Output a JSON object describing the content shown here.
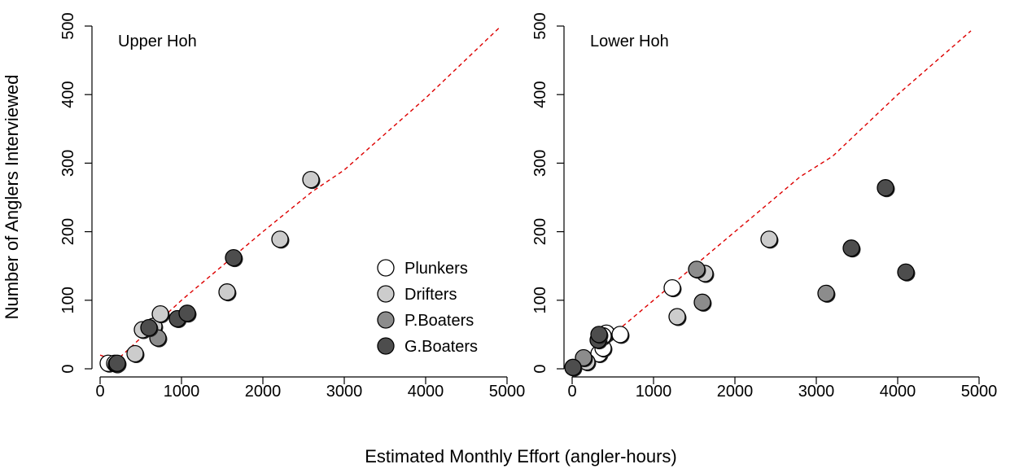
{
  "figure": {
    "shared_xlabel": "Estimated Monthly Effort (angler-hours)",
    "shared_ylabel": "Number of Anglers Interviewed"
  },
  "legend": {
    "placement": "bottom-right of first panel",
    "entries": [
      {
        "name": "Plunkers",
        "color": "#ffffff"
      },
      {
        "name": "Drifters",
        "color": "#cccccc"
      },
      {
        "name": "P.Boaters",
        "color": "#8c8c8c"
      },
      {
        "name": "G.Boaters",
        "color": "#4d4d4d"
      }
    ]
  },
  "chart_data": [
    {
      "type": "scatter",
      "panel_label": "Upper Hoh",
      "xlim": [
        0,
        5000
      ],
      "ylim": [
        0,
        500
      ],
      "xticks": [
        0,
        1000,
        2000,
        3000,
        4000,
        5000
      ],
      "yticks": [
        0,
        100,
        200,
        300,
        400,
        500
      ],
      "grid": false,
      "reference_line": {
        "style": "dashed",
        "color": "#dd0000",
        "points": [
          [
            0,
            20
          ],
          [
            200,
            12
          ],
          [
            500,
            45
          ],
          [
            1000,
            100
          ],
          [
            1500,
            150
          ],
          [
            2000,
            200
          ],
          [
            2600,
            258
          ],
          [
            3000,
            290
          ],
          [
            4000,
            395
          ],
          [
            4900,
            497
          ]
        ]
      },
      "series": [
        {
          "name": "Plunkers",
          "points": [
            [
              100,
              8
            ],
            [
              180,
              8
            ]
          ]
        },
        {
          "name": "Drifters",
          "points": [
            [
              430,
              22
            ],
            [
              520,
              57
            ],
            [
              660,
              62
            ],
            [
              740,
              80
            ],
            [
              1560,
              112
            ],
            [
              2210,
              189
            ],
            [
              2590,
              276
            ]
          ]
        },
        {
          "name": "P.Boaters",
          "points": [
            [
              200,
              7
            ],
            [
              710,
              45
            ]
          ]
        },
        {
          "name": "G.Boaters",
          "points": [
            [
              210,
              8
            ],
            [
              600,
              60
            ],
            [
              950,
              73
            ],
            [
              1070,
              81
            ],
            [
              1640,
              162
            ]
          ]
        }
      ]
    },
    {
      "type": "scatter",
      "panel_label": "Lower Hoh",
      "xlim": [
        0,
        5000
      ],
      "ylim": [
        0,
        500
      ],
      "xticks": [
        0,
        1000,
        2000,
        3000,
        4000,
        5000
      ],
      "yticks": [
        0,
        100,
        200,
        300,
        400,
        500
      ],
      "grid": false,
      "reference_line": {
        "style": "dashed",
        "color": "#dd0000",
        "points": [
          [
            0,
            0
          ],
          [
            1000,
            100
          ],
          [
            2000,
            200
          ],
          [
            2800,
            280
          ],
          [
            3200,
            310
          ],
          [
            4000,
            400
          ],
          [
            4900,
            493
          ]
        ]
      },
      "series": [
        {
          "name": "Plunkers",
          "points": [
            [
              330,
              22
            ],
            [
              380,
              30
            ],
            [
              420,
              52
            ],
            [
              380,
              48
            ],
            [
              590,
              50
            ],
            [
              1230,
              118
            ]
          ]
        },
        {
          "name": "Drifters",
          "points": [
            [
              180,
              10
            ],
            [
              1290,
              76
            ],
            [
              1630,
              139
            ],
            [
              2420,
              189
            ]
          ]
        },
        {
          "name": "P.Boaters",
          "points": [
            [
              140,
              16
            ],
            [
              1600,
              97
            ],
            [
              1530,
              145
            ],
            [
              3120,
              110
            ]
          ]
        },
        {
          "name": "G.Boaters",
          "points": [
            [
              10,
              2
            ],
            [
              320,
              42
            ],
            [
              330,
              50
            ],
            [
              3430,
              176
            ],
            [
              3850,
              264
            ],
            [
              4100,
              141
            ]
          ]
        }
      ]
    }
  ]
}
